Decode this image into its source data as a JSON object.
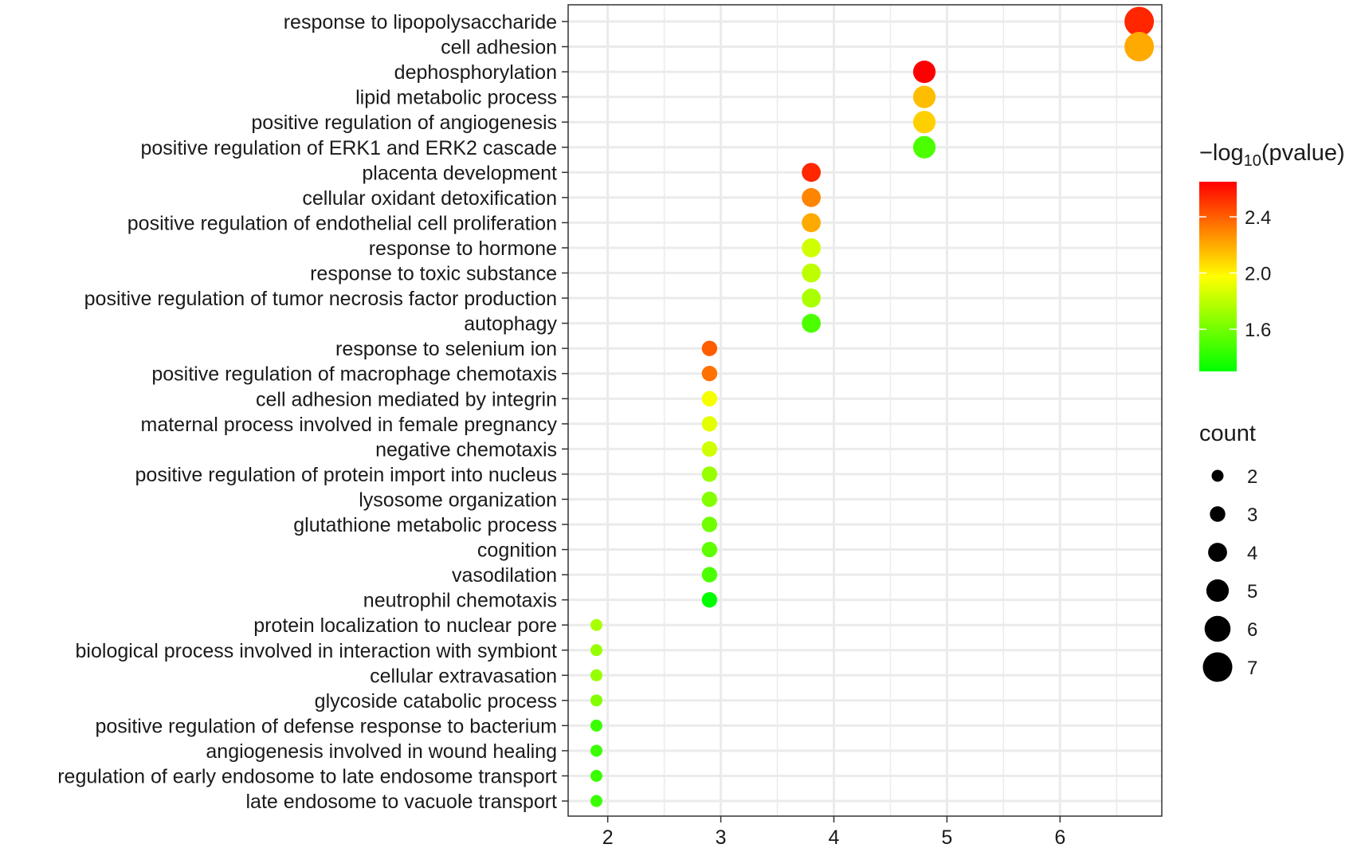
{
  "chart_data": {
    "type": "scatter",
    "title": "",
    "xlabel": "",
    "ylabel": "",
    "xlim": [
      1.65,
      6.9
    ],
    "x_ticks": [
      2,
      3,
      4,
      5,
      6
    ],
    "grid": true,
    "legend_placement": "right",
    "color_legend": {
      "title_prefix": "−log",
      "title_subscript": "10",
      "title_suffix": "(pvalue)",
      "range": [
        1.3,
        2.65
      ],
      "ticks": [
        2.4,
        2.0,
        1.6
      ],
      "tick_labels": [
        "2.4",
        "2.0",
        "1.6"
      ],
      "colors": [
        "#00ff00",
        "#ffff00",
        "#ff0000"
      ]
    },
    "size_legend": {
      "title": "count",
      "values": [
        2,
        3,
        4,
        5,
        6,
        7
      ],
      "labels": [
        "2",
        "3",
        "4",
        "5",
        "6",
        "7"
      ]
    },
    "points": [
      {
        "term": "response to lipopolysaccharide",
        "x": 6.7,
        "count": 7,
        "neglog10p": 2.55
      },
      {
        "term": "cell adhesion",
        "x": 6.7,
        "count": 7,
        "neglog10p": 2.2
      },
      {
        "term": "dephosphorylation",
        "x": 4.8,
        "count": 5,
        "neglog10p": 2.65
      },
      {
        "term": "lipid metabolic process",
        "x": 4.8,
        "count": 5,
        "neglog10p": 2.15
      },
      {
        "term": "positive regulation of angiogenesis",
        "x": 4.8,
        "count": 5,
        "neglog10p": 2.1
      },
      {
        "term": "positive regulation of ERK1 and ERK2 cascade",
        "x": 4.8,
        "count": 5,
        "neglog10p": 1.5
      },
      {
        "term": "placenta development",
        "x": 3.8,
        "count": 4,
        "neglog10p": 2.55
      },
      {
        "term": "cellular oxidant detoxification",
        "x": 3.8,
        "count": 4,
        "neglog10p": 2.3
      },
      {
        "term": "positive regulation of endothelial cell proliferation",
        "x": 3.8,
        "count": 4,
        "neglog10p": 2.2
      },
      {
        "term": "response to hormone",
        "x": 3.8,
        "count": 4,
        "neglog10p": 1.85
      },
      {
        "term": "response to toxic substance",
        "x": 3.8,
        "count": 4,
        "neglog10p": 1.8
      },
      {
        "term": "positive regulation of tumor necrosis factor production",
        "x": 3.8,
        "count": 4,
        "neglog10p": 1.75
      },
      {
        "term": "autophagy",
        "x": 3.8,
        "count": 4,
        "neglog10p": 1.5
      },
      {
        "term": "response to selenium ion",
        "x": 2.9,
        "count": 3,
        "neglog10p": 2.4
      },
      {
        "term": "positive regulation of macrophage chemotaxis",
        "x": 2.9,
        "count": 3,
        "neglog10p": 2.35
      },
      {
        "term": "cell adhesion mediated by integrin",
        "x": 2.9,
        "count": 3,
        "neglog10p": 1.95
      },
      {
        "term": "maternal process involved in female pregnancy",
        "x": 2.9,
        "count": 3,
        "neglog10p": 1.9
      },
      {
        "term": "negative chemotaxis",
        "x": 2.9,
        "count": 3,
        "neglog10p": 1.85
      },
      {
        "term": "positive regulation of protein import into nucleus",
        "x": 2.9,
        "count": 3,
        "neglog10p": 1.7
      },
      {
        "term": "lysosome organization",
        "x": 2.9,
        "count": 3,
        "neglog10p": 1.65
      },
      {
        "term": "glutathione metabolic process",
        "x": 2.9,
        "count": 3,
        "neglog10p": 1.6
      },
      {
        "term": "cognition",
        "x": 2.9,
        "count": 3,
        "neglog10p": 1.55
      },
      {
        "term": "vasodilation",
        "x": 2.9,
        "count": 3,
        "neglog10p": 1.5
      },
      {
        "term": "neutrophil chemotaxis",
        "x": 2.9,
        "count": 3,
        "neglog10p": 1.3
      },
      {
        "term": "protein localization to nuclear pore",
        "x": 1.9,
        "count": 2,
        "neglog10p": 1.75
      },
      {
        "term": "biological process involved in interaction with symbiont",
        "x": 1.9,
        "count": 2,
        "neglog10p": 1.7
      },
      {
        "term": "cellular extravasation",
        "x": 1.9,
        "count": 2,
        "neglog10p": 1.7
      },
      {
        "term": "glycoside catabolic process",
        "x": 1.9,
        "count": 2,
        "neglog10p": 1.65
      },
      {
        "term": "positive regulation of defense response to bacterium",
        "x": 1.9,
        "count": 2,
        "neglog10p": 1.45
      },
      {
        "term": "angiogenesis involved in wound healing",
        "x": 1.9,
        "count": 2,
        "neglog10p": 1.45
      },
      {
        "term": "regulation of early endosome to late endosome transport",
        "x": 1.9,
        "count": 2,
        "neglog10p": 1.45
      },
      {
        "term": "late endosome to vacuole transport",
        "x": 1.9,
        "count": 2,
        "neglog10p": 1.45
      }
    ]
  }
}
